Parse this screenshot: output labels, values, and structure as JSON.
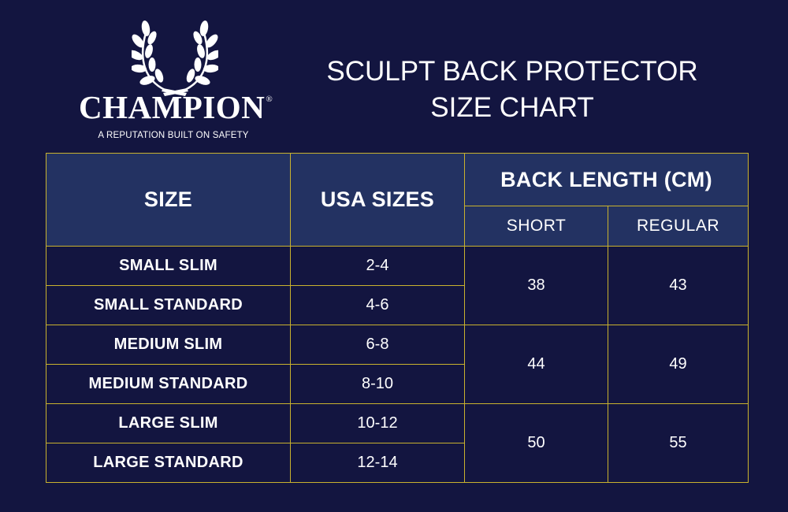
{
  "brand": {
    "name": "CHAMPION",
    "registered_mark": "®",
    "tagline": "A REPUTATION BUILT ON SAFETY"
  },
  "title": {
    "line1": "SCULPT BACK PROTECTOR",
    "line2": "SIZE CHART"
  },
  "table": {
    "headers": {
      "size": "SIZE",
      "usa_sizes": "USA SIZES",
      "back_length": "BACK LENGTH (CM)",
      "short": "SHORT",
      "regular": "REGULAR"
    },
    "groups": [
      {
        "rows": [
          {
            "size": "SMALL SLIM",
            "usa": "2-4"
          },
          {
            "size": "SMALL STANDARD",
            "usa": "4-6"
          }
        ],
        "short": "38",
        "regular": "43"
      },
      {
        "rows": [
          {
            "size": "MEDIUM SLIM",
            "usa": "6-8"
          },
          {
            "size": "MEDIUM STANDARD",
            "usa": "8-10"
          }
        ],
        "short": "44",
        "regular": "49"
      },
      {
        "rows": [
          {
            "size": "LARGE SLIM",
            "usa": "10-12"
          },
          {
            "size": "LARGE STANDARD",
            "usa": "12-14"
          }
        ],
        "short": "50",
        "regular": "55"
      }
    ]
  },
  "colors": {
    "background": "#131540",
    "header_fill": "#233262",
    "border_gold": "#c9b22e",
    "text": "#ffffff"
  }
}
